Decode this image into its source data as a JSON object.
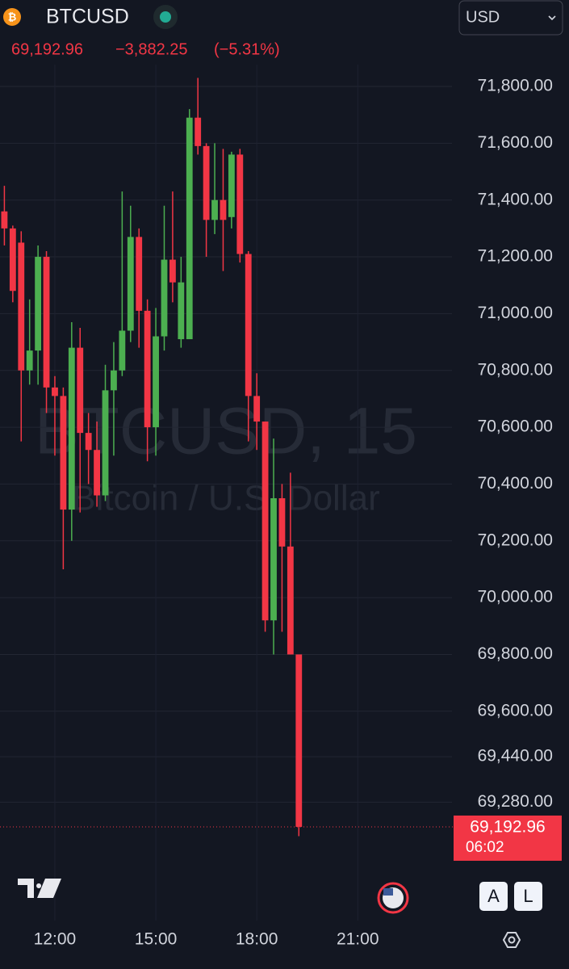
{
  "header": {
    "symbol": "BTCUSD",
    "price": "69,192.96",
    "change": "−3,882.25",
    "change_pct": "(−5.31%)",
    "currency": "USD"
  },
  "chart_data": {
    "type": "candlestick",
    "watermark": "BTCUSD, 15",
    "watermark_subtitle": "Bitcoin / U.S. Dollar",
    "up_color": "#4caf50",
    "down_color": "#f23645",
    "grid": true,
    "x": [
      10.5,
      10.75,
      11,
      11.25,
      11.5,
      11.75,
      12,
      12.25,
      12.5,
      12.75,
      13,
      13.25,
      13.5,
      13.75,
      14,
      14.25,
      14.5,
      14.75,
      15,
      15.25,
      15.5,
      15.75,
      16,
      16.25,
      16.5,
      16.75,
      17,
      17.25,
      17.5,
      17.75,
      18,
      18.25,
      18.5,
      18.75,
      19,
      19.25
    ],
    "open": [
      71360,
      71300,
      71250,
      70800,
      70870,
      71200,
      70740,
      70710,
      70310,
      70880,
      70580,
      70520,
      70360,
      70730,
      70800,
      70940,
      71270,
      71010,
      70600,
      70920,
      71190,
      70910,
      70910,
      71690,
      71590,
      71330,
      71400,
      71340,
      71560,
      71210,
      70710,
      70620,
      69920,
      70350,
      70180,
      69800
    ],
    "high": [
      71450,
      71310,
      71290,
      71050,
      71240,
      71220,
      70780,
      70740,
      70970,
      70950,
      70650,
      70620,
      70820,
      70900,
      71430,
      71380,
      71300,
      71050,
      71020,
      71380,
      71430,
      71200,
      71720,
      71830,
      71600,
      71600,
      71580,
      71570,
      71580,
      71220,
      70790,
      70620,
      70560,
      70400,
      70440,
      69800
    ],
    "low": [
      71240,
      71040,
      70550,
      70750,
      70750,
      70650,
      70500,
      70100,
      70200,
      70300,
      70400,
      70320,
      70340,
      70500,
      70780,
      70900,
      70880,
      70480,
      70500,
      70870,
      71040,
      70880,
      70910,
      71560,
      71200,
      71280,
      71150,
      71300,
      71180,
      70550,
      70520,
      69880,
      69800,
      69880,
      69800,
      69160
    ],
    "close": [
      71300,
      71080,
      70800,
      70870,
      71200,
      70740,
      70710,
      70310,
      70880,
      70580,
      70520,
      70360,
      70730,
      70800,
      70940,
      71270,
      71010,
      70600,
      70920,
      71190,
      71110,
      71110,
      71690,
      71590,
      71330,
      71400,
      71330,
      71560,
      71210,
      70710,
      70620,
      69920,
      70350,
      70180,
      69800,
      69192.96
    ],
    "xlim": [
      10.37,
      23.8
    ],
    "xticks": [
      {
        "value": 12,
        "label": "12:00"
      },
      {
        "value": 15,
        "label": "15:00"
      },
      {
        "value": 18,
        "label": "18:00"
      },
      {
        "value": 21,
        "label": "21:00"
      }
    ],
    "ylim": [
      68900,
      72100
    ],
    "yticks": [
      {
        "value": 71800,
        "label": "71,800.00"
      },
      {
        "value": 71600,
        "label": "71,600.00"
      },
      {
        "value": 71400,
        "label": "71,400.00"
      },
      {
        "value": 71200,
        "label": "71,200.00"
      },
      {
        "value": 71000,
        "label": "71,000.00"
      },
      {
        "value": 70800,
        "label": "70,800.00"
      },
      {
        "value": 70600,
        "label": "70,600.00"
      },
      {
        "value": 70400,
        "label": "70,400.00"
      },
      {
        "value": 70200,
        "label": "70,200.00"
      },
      {
        "value": 70000,
        "label": "70,000.00"
      },
      {
        "value": 69800,
        "label": "69,800.00"
      },
      {
        "value": 69600,
        "label": "69,600.00"
      },
      {
        "value": 69440,
        "label": "69,440.00"
      },
      {
        "value": 69280,
        "label": "69,280.00"
      }
    ],
    "last_price": {
      "value": 69192.96,
      "label": "69,192.96"
    },
    "countdown": "06:02",
    "buttons": [
      "A",
      "L"
    ]
  }
}
